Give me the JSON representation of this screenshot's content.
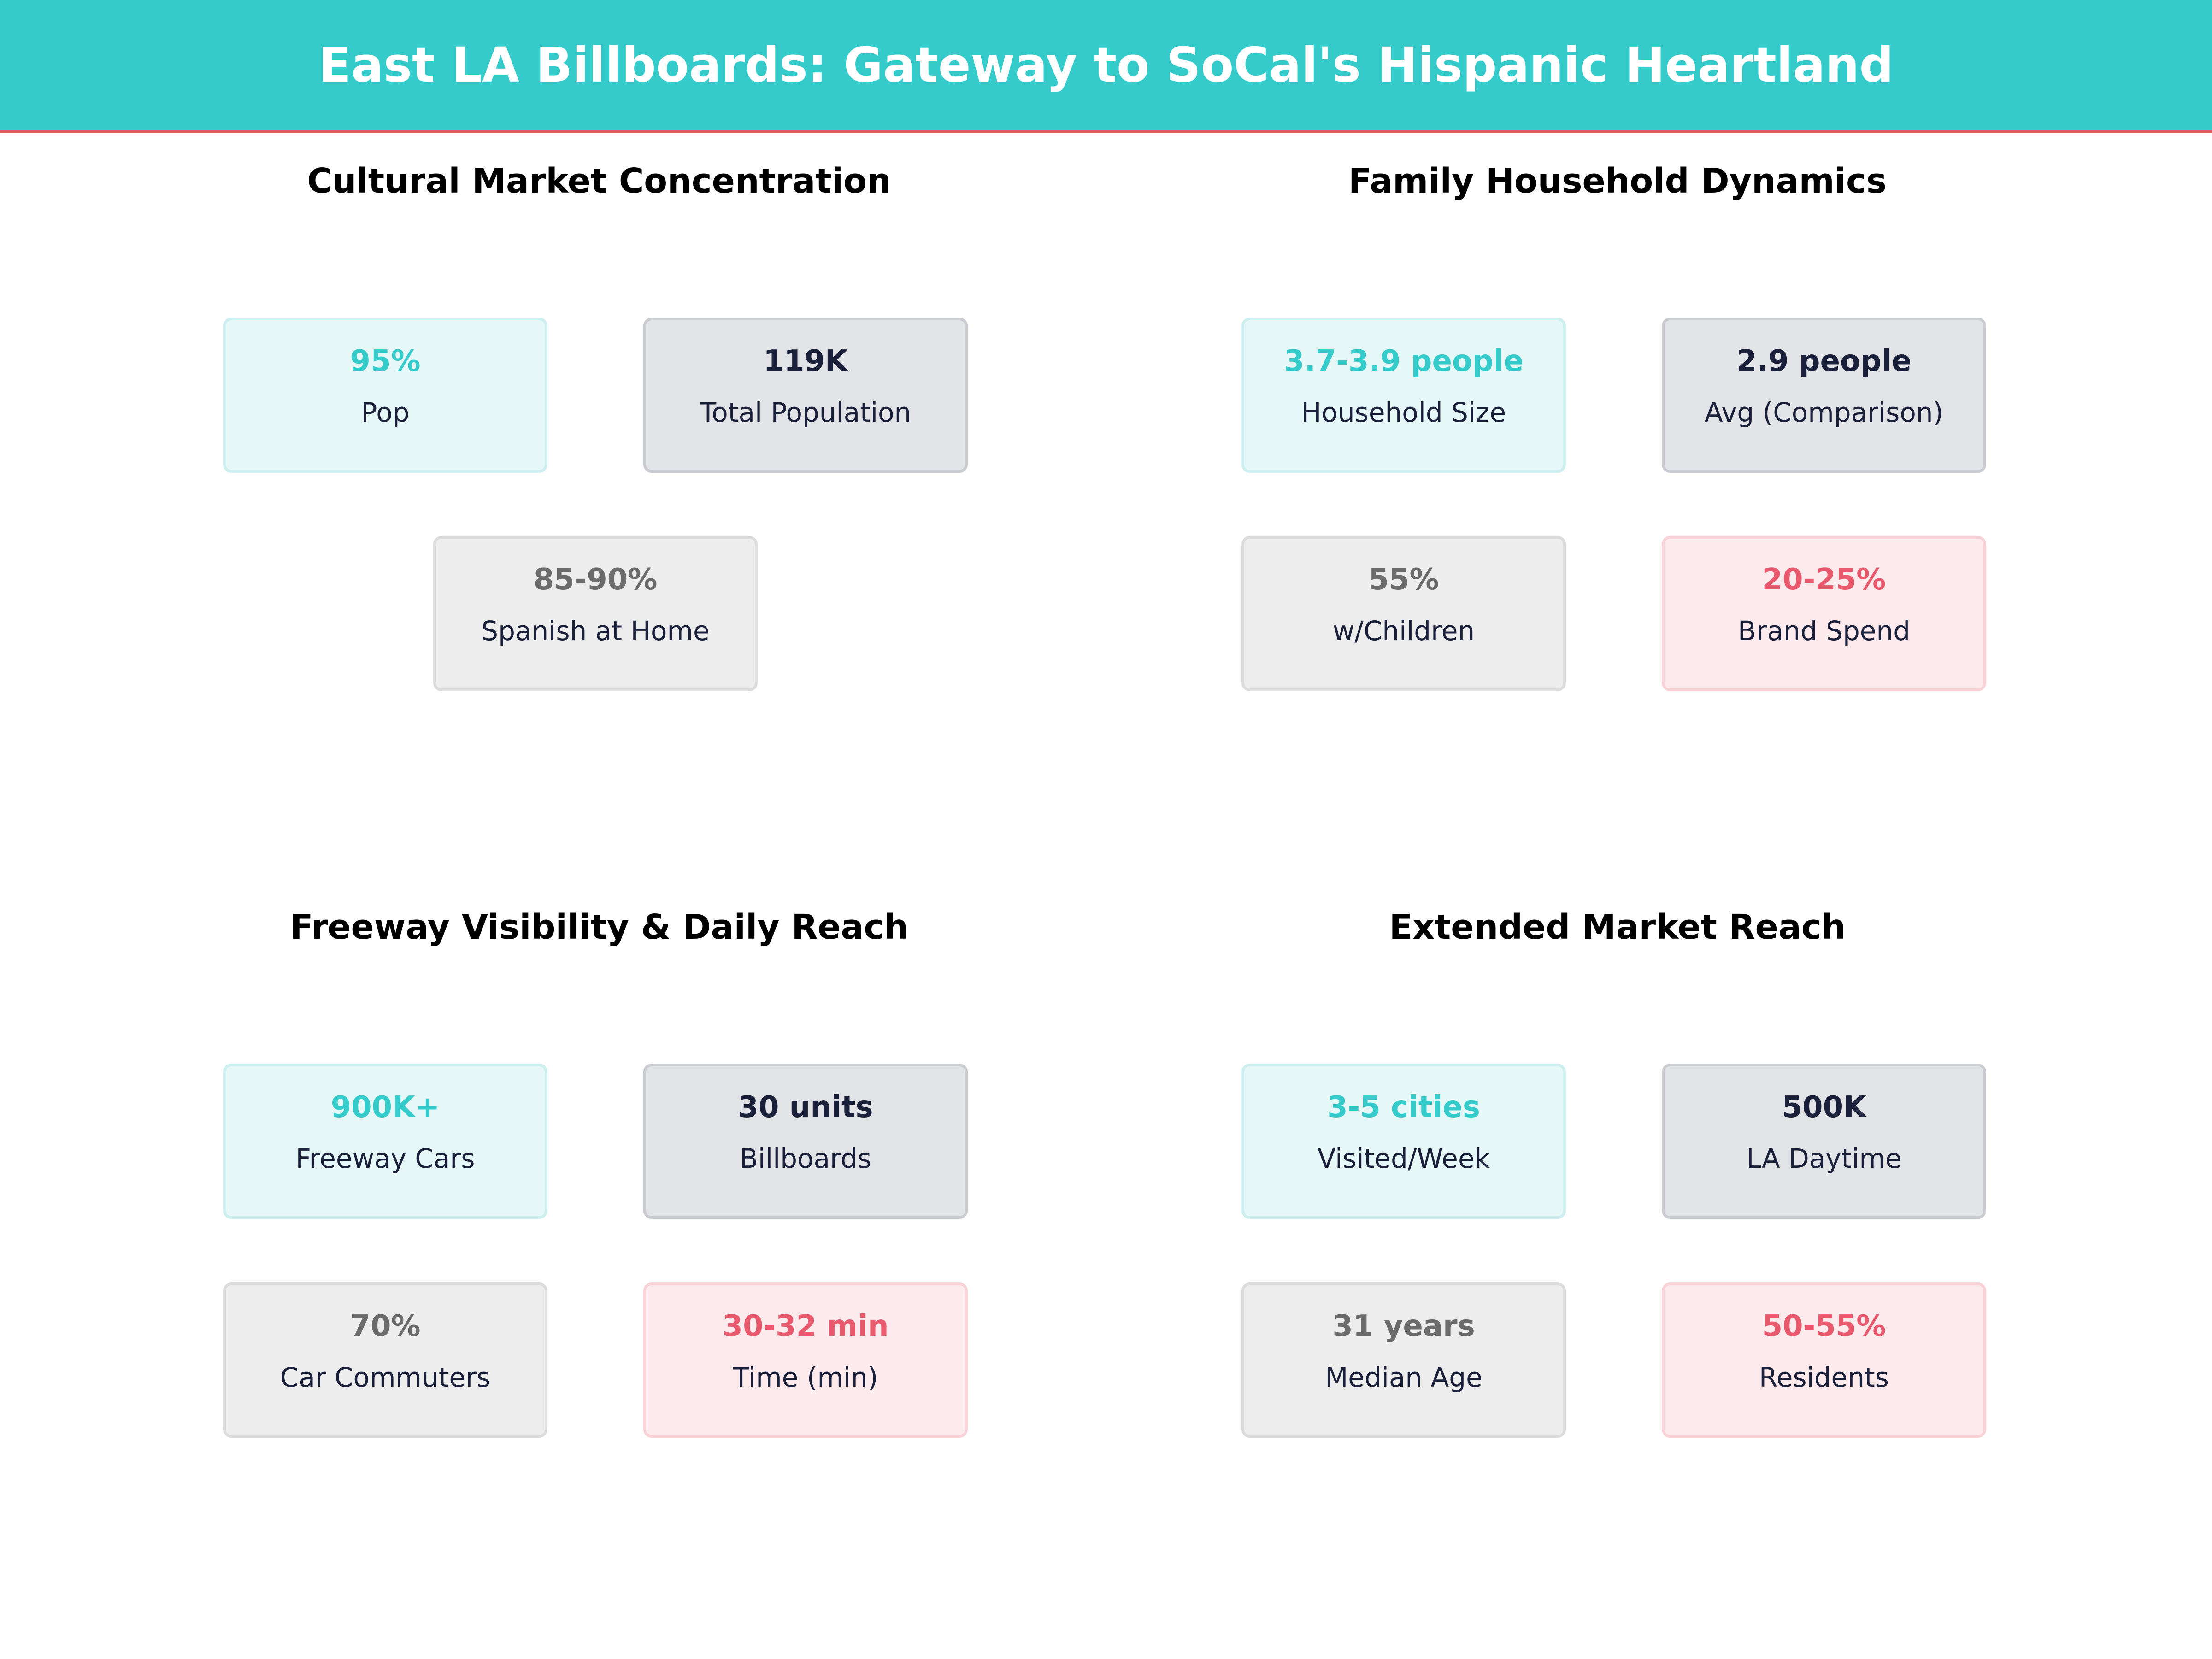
{
  "title": "East LA Billboards: Gateway to SoCal's Hispanic Heartland",
  "colors": {
    "teal": "#36CBCB",
    "coral": "#E8596E",
    "navy": "#1a1f3a",
    "gray": "#6b6b6b"
  },
  "sections": [
    {
      "title": "Cultural Market Concentration",
      "cards": [
        {
          "value": "95%",
          "label": "Pop",
          "style": "teal"
        },
        {
          "value": "119K",
          "label": "Total Population",
          "style": "navy"
        },
        {
          "value": "85-90%",
          "label": "Spanish at Home",
          "style": "gray"
        }
      ]
    },
    {
      "title": "Family Household Dynamics",
      "cards": [
        {
          "value": "3.7-3.9 people",
          "label": "Household Size",
          "style": "teal"
        },
        {
          "value": "2.9 people",
          "label": "Avg (Comparison)",
          "style": "navy"
        },
        {
          "value": "55%",
          "label": "w/Children",
          "style": "gray"
        },
        {
          "value": "20-25%",
          "label": "Brand Spend",
          "style": "pink"
        }
      ]
    },
    {
      "title": "Freeway Visibility & Daily Reach",
      "cards": [
        {
          "value": "900K+",
          "label": "Freeway Cars",
          "style": "teal"
        },
        {
          "value": "30 units",
          "label": "Billboards",
          "style": "navy"
        },
        {
          "value": "70%",
          "label": "Car Commuters",
          "style": "gray"
        },
        {
          "value": "30-32 min",
          "label": "Time (min)",
          "style": "pink"
        }
      ]
    },
    {
      "title": "Extended Market Reach",
      "cards": [
        {
          "value": "3-5 cities",
          "label": "Visited/Week",
          "style": "teal"
        },
        {
          "value": "500K",
          "label": "LA Daytime",
          "style": "navy"
        },
        {
          "value": "31 years",
          "label": "Median Age",
          "style": "gray"
        },
        {
          "value": "50-55%",
          "label": "Residents",
          "style": "pink"
        }
      ]
    }
  ]
}
